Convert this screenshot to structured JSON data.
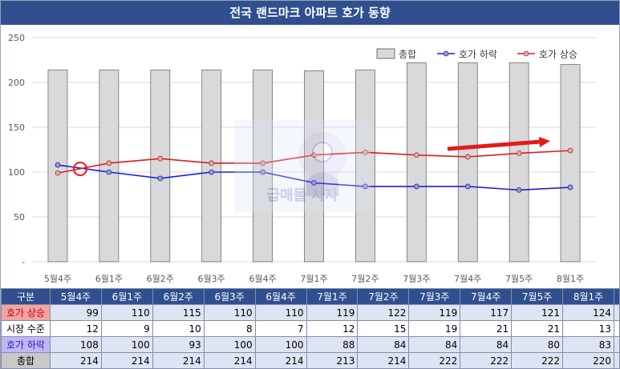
{
  "title": "전국 랜드마크 아파트 호가 동향",
  "legend": {
    "total": "총합",
    "down": "호가 하락",
    "up": "호가 상승"
  },
  "colors": {
    "up": "#e31a1c",
    "down": "#1f1fd6",
    "bar_fill": "#d9d9d9",
    "bar_stroke": "#6f6f6f",
    "header": "#2f4f8f"
  },
  "watermark": "급매물 사자",
  "chart_data": {
    "type": "bar",
    "categories": [
      "5월4주",
      "6월1주",
      "6월2주",
      "6월3주",
      "6월4주",
      "7월1주",
      "7월2주",
      "7월3주",
      "7월4주",
      "7월5주",
      "8월1주"
    ],
    "ylim": [
      0,
      250
    ],
    "yticks": [
      0,
      50,
      100,
      150,
      200,
      250
    ],
    "ytick_labels": [
      "-",
      "50",
      "100",
      "150",
      "200",
      "250"
    ],
    "series": [
      {
        "name": "총합",
        "type": "bar",
        "values": [
          214,
          214,
          214,
          214,
          214,
          213,
          214,
          222,
          222,
          222,
          220
        ]
      },
      {
        "name": "호가 하락",
        "type": "line",
        "values": [
          108,
          100,
          93,
          100,
          100,
          88,
          84,
          84,
          84,
          80,
          83
        ]
      },
      {
        "name": "호가 상승",
        "type": "line",
        "values": [
          99,
          110,
          115,
          110,
          110,
          119,
          122,
          119,
          117,
          121,
          124
        ]
      }
    ],
    "legend_position": "top-right",
    "grid": true
  },
  "table": {
    "header_label": "구분",
    "rows": [
      {
        "label": "호가 상승",
        "values": [
          "99",
          "110",
          "115",
          "110",
          "110",
          "119",
          "122",
          "119",
          "117",
          "121",
          "124"
        ]
      },
      {
        "label": "시장 수준",
        "values": [
          "12",
          "9",
          "10",
          "8",
          "7",
          "12",
          "15",
          "19",
          "21",
          "21",
          "13"
        ]
      },
      {
        "label": "호가 하락",
        "values": [
          "108",
          "100",
          "93",
          "100",
          "100",
          "88",
          "84",
          "84",
          "84",
          "80",
          "83"
        ]
      },
      {
        "label": "총합",
        "values": [
          "214",
          "214",
          "214",
          "214",
          "214",
          "213",
          "214",
          "222",
          "222",
          "222",
          "220"
        ]
      }
    ]
  }
}
